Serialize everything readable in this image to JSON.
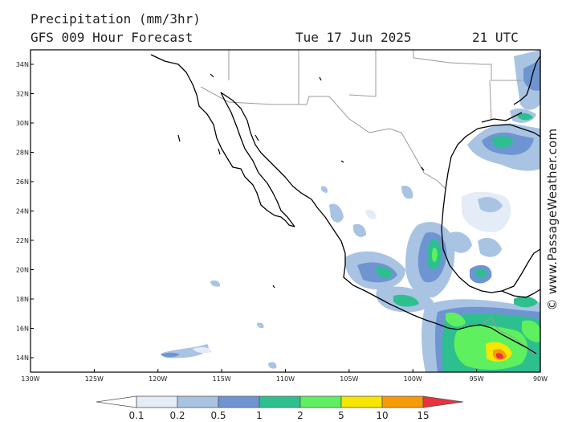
{
  "header": {
    "title": "Precipitation (mm/3hr)",
    "subtitle": "GFS 009 Hour Forecast",
    "date": "Tue 17 Jun 2025",
    "time": "21 UTC"
  },
  "credit": "© www.PassageWeather.com",
  "map": {
    "lon_range": [
      -130,
      -90
    ],
    "lat_range": [
      13,
      35
    ],
    "lat_ticks": [
      "34N",
      "32N",
      "30N",
      "28N",
      "26N",
      "24N",
      "22N",
      "20N",
      "18N",
      "16N",
      "14N"
    ],
    "lon_ticks": [
      "130W",
      "125W",
      "120W",
      "115W",
      "110W",
      "105W",
      "100W",
      "95W",
      "90W"
    ]
  },
  "legend": {
    "labels": [
      "0.1",
      "0.2",
      "0.5",
      "1",
      "2",
      "5",
      "10",
      "15"
    ],
    "colors": {
      "c0": "#ffffff",
      "c01": "#e3ecf7",
      "c02": "#a9c3e3",
      "c05": "#6e95d2",
      "c1": "#2ebf8f",
      "c2": "#5ef05e",
      "c5": "#f6e600",
      "c10": "#f79a08",
      "c15": "#e8323c"
    }
  },
  "colors": {
    "coast": "#000000",
    "border": "#9a9a9a",
    "frame": "#000000"
  }
}
